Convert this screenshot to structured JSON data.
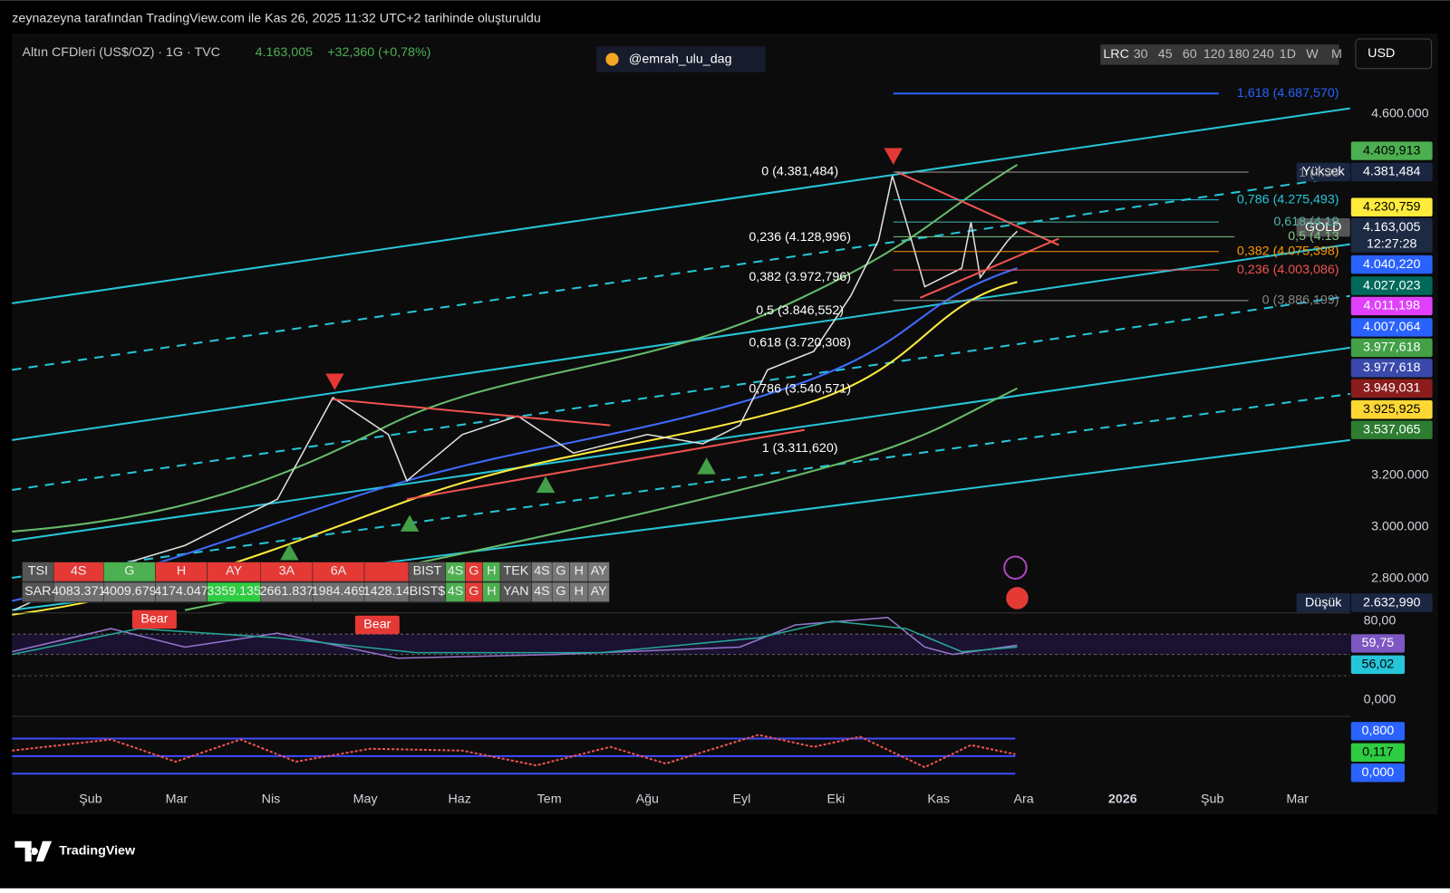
{
  "header": {
    "caption": "zeynazeyna tarafından TradingView.com ile Kas 26, 2025 11:32 UTC+2 tarihinde oluşturuldu"
  },
  "symbol": {
    "name": "Altın CFDleri (US$/OZ) · 1G · TVC",
    "price": "4.163,005",
    "change": "+32,360 (+0,78%)"
  },
  "watermark": "@emrah_ulu_dag",
  "timeframes": [
    "LRC",
    "30",
    "45",
    "60",
    "120",
    "180",
    "240",
    "1D",
    "W",
    "M"
  ],
  "currency": "USD",
  "price_axis": [
    "4.600.000",
    "3.200.000",
    "3.000.000",
    "2.800.000"
  ],
  "badges": [
    {
      "value": "4.409,913"
    },
    {
      "tag": "Yüksek",
      "value": "4.381,484"
    },
    {
      "value": "4.230,759"
    },
    {
      "tag": "GOLD",
      "value": "4.163,005",
      "timer": "12:27:28"
    },
    {
      "value": "4.040,220"
    },
    {
      "value": "4.027,023"
    },
    {
      "value": "4.011,198"
    },
    {
      "value": "4.007,064"
    },
    {
      "value": "3.977,618"
    },
    {
      "value": "3.977,618"
    },
    {
      "value": "3.949,031"
    },
    {
      "value": "3.925,925"
    },
    {
      "value": "3.537,065"
    },
    {
      "tag": "Düşük",
      "value": "2.632,990"
    }
  ],
  "fib_right": [
    "1,618 (4.687,570)",
    "1 (4.38",
    "0,786 (4.275,493)",
    "0,618 (4.19",
    "0,5 (4.13",
    "0,382 (4.075,398)",
    "0,236 (4.003,086)",
    "0 (3.886,199)"
  ],
  "fib_left": [
    "0 (4.381,484)",
    "0,236 (4.128,996)",
    "0,382 (3.972,796)",
    "0,5 (3.846,552)",
    "0,618 (3.720,308)",
    "0,786 (3.540,571)",
    "1 (3.311,620)"
  ],
  "signals": [
    "Bear",
    "Bear"
  ],
  "table": {
    "rows": [
      [
        "TSI",
        "4S",
        "G",
        "H",
        "AY",
        "3A",
        "6A",
        "",
        "BIST",
        "4S",
        "G",
        "H",
        "TEK",
        "4S",
        "G",
        "H",
        "AY"
      ],
      [
        "SAR",
        "4083.371",
        "4009.679",
        "4174.047",
        "3359.135",
        "2661.837",
        "1984.469",
        "1428.14",
        "BIST$",
        "4S",
        "G",
        "H",
        "YAN",
        "4S",
        "G",
        "H",
        "AY"
      ]
    ]
  },
  "rsi": {
    "axis_top": "80,00",
    "values": [
      "59,75",
      "56,02"
    ],
    "axis_bottom": "0,000"
  },
  "oscillator": {
    "values": [
      "0,800",
      "0,117",
      "0,000"
    ]
  },
  "time_axis": [
    "Şub",
    "Mar",
    "Nis",
    "May",
    "Haz",
    "Tem",
    "Ağu",
    "Eyl",
    "Eki",
    "Kas",
    "Ara",
    "2026",
    "Şub",
    "Mar"
  ],
  "footer": {
    "logo": "TradingView"
  }
}
